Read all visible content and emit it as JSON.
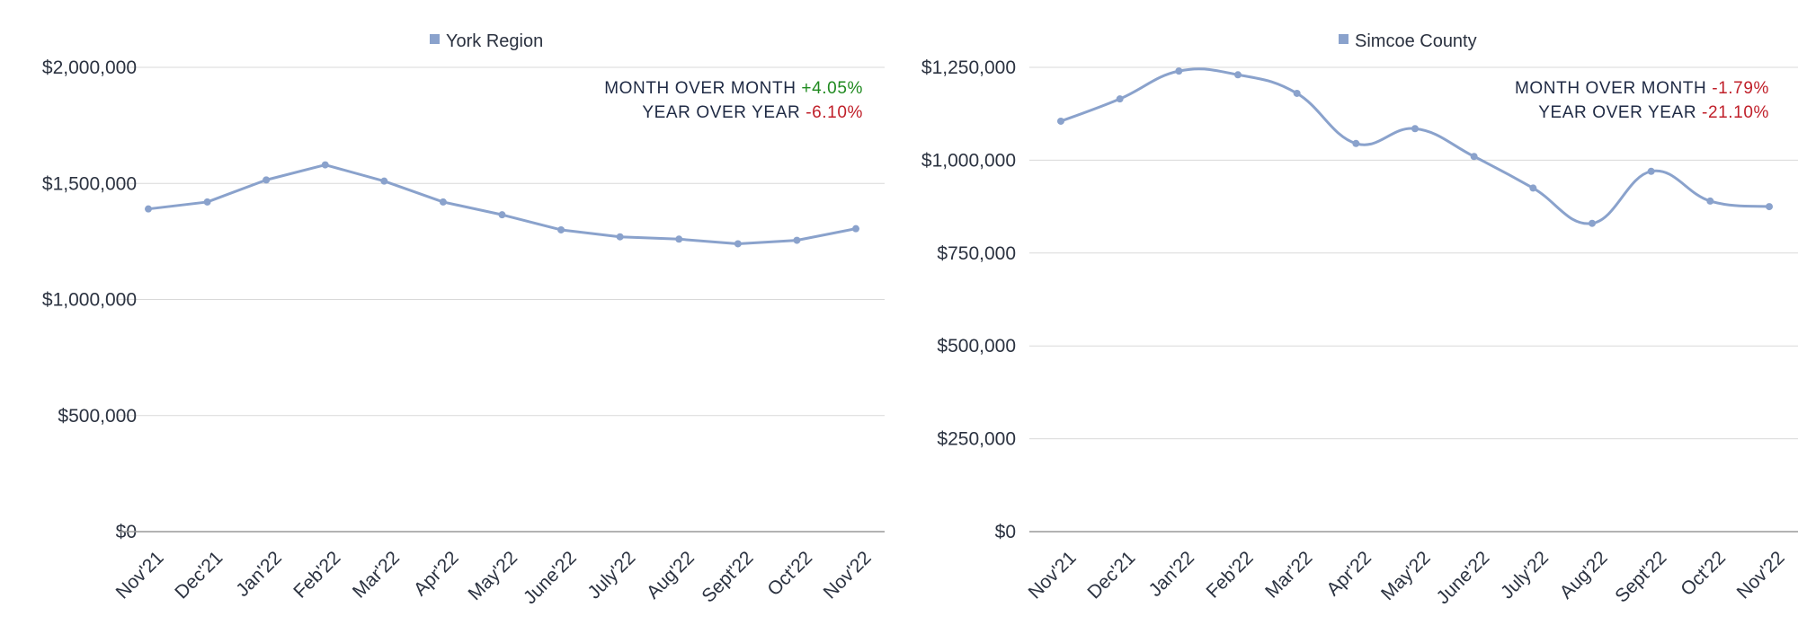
{
  "colors": {
    "series": "#8aa2cc",
    "grid": "#d9d9d9",
    "axis": "#9a9a9a",
    "text": "#2b3240",
    "positive": "#1f8a1f",
    "negative": "#c0202a"
  },
  "chart_data": [
    {
      "type": "line",
      "smooth": false,
      "legend": {
        "label": "York Region",
        "position": "top-center"
      },
      "categories": [
        "Nov'21",
        "Dec'21",
        "Jan'22",
        "Feb'22",
        "Mar'22",
        "Apr'22",
        "May'22",
        "June'22",
        "July'22",
        "Aug'22",
        "Sept'22",
        "Oct'22",
        "Nov'22"
      ],
      "series": [
        {
          "name": "York Region",
          "values": [
            1390000,
            1420000,
            1515000,
            1580000,
            1510000,
            1420000,
            1365000,
            1300000,
            1270000,
            1260000,
            1240000,
            1255000,
            1305000
          ]
        }
      ],
      "ylim": [
        0,
        2000000
      ],
      "yticks": [
        0,
        500000,
        1000000,
        1500000,
        2000000
      ],
      "ytick_labels": [
        "$0",
        "$500,000",
        "$1,000,000",
        "$1,500,000",
        "$2,000,000"
      ],
      "grid": true,
      "stats": [
        {
          "label": "MONTH OVER MONTH",
          "value": "+4.05%",
          "trend": "positive"
        },
        {
          "label": "YEAR OVER YEAR",
          "value": "-6.10%",
          "trend": "negative"
        }
      ]
    },
    {
      "type": "line",
      "smooth": true,
      "legend": {
        "label": "Simcoe County",
        "position": "top-center"
      },
      "categories": [
        "Nov'21",
        "Dec'21",
        "Jan'22",
        "Feb'22",
        "Mar'22",
        "Apr'22",
        "May'22",
        "June'22",
        "July'22",
        "Aug'22",
        "Sept'22",
        "Oct'22",
        "Nov'22"
      ],
      "series": [
        {
          "name": "Simcoe County",
          "values": [
            1105000,
            1165000,
            1240000,
            1230000,
            1180000,
            1045000,
            1085000,
            1010000,
            925000,
            830000,
            970000,
            890000,
            875000
          ]
        }
      ],
      "ylim": [
        0,
        1250000
      ],
      "yticks": [
        0,
        250000,
        500000,
        750000,
        1000000,
        1250000
      ],
      "ytick_labels": [
        "$0",
        "$250,000",
        "$500,000",
        "$750,000",
        "$1,000,000",
        "$1,250,000"
      ],
      "grid": true,
      "stats": [
        {
          "label": "MONTH OVER MONTH",
          "value": "-1.79%",
          "trend": "negative"
        },
        {
          "label": "YEAR OVER YEAR",
          "value": "-21.10%",
          "trend": "negative"
        }
      ]
    }
  ]
}
